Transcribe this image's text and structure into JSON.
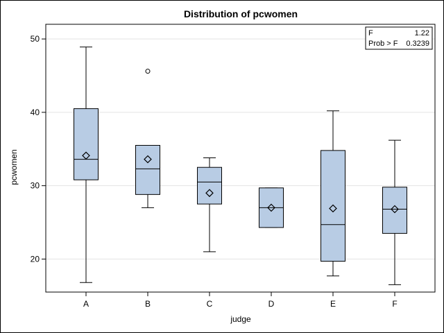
{
  "chart_data": {
    "type": "box",
    "title": "Distribution of pcwomen",
    "xlabel": "judge",
    "ylabel": "pcwomen",
    "ylim": [
      15.5,
      52
    ],
    "yticks": [
      20,
      30,
      40,
      50
    ],
    "grid": true,
    "box_fill": "#b8cce4",
    "categories": [
      "A",
      "B",
      "C",
      "D",
      "E",
      "F"
    ],
    "boxes": [
      {
        "category": "A",
        "whisker_low": 16.8,
        "q1": 30.8,
        "median": 33.6,
        "q3": 40.5,
        "whisker_high": 48.9,
        "mean": 34.1,
        "outliers": []
      },
      {
        "category": "B",
        "whisker_low": 27.0,
        "q1": 28.8,
        "median": 32.3,
        "q3": 35.5,
        "whisker_high": 35.5,
        "mean": 33.6,
        "outliers": [
          45.6
        ]
      },
      {
        "category": "C",
        "whisker_low": 21.0,
        "q1": 27.5,
        "median": 30.5,
        "q3": 32.5,
        "whisker_high": 33.8,
        "mean": 29.0,
        "outliers": []
      },
      {
        "category": "D",
        "whisker_low": 24.3,
        "q1": 24.3,
        "median": 27.0,
        "q3": 29.7,
        "whisker_high": 29.7,
        "mean": 27.0,
        "outliers": []
      },
      {
        "category": "E",
        "whisker_low": 17.7,
        "q1": 19.7,
        "median": 24.7,
        "q3": 34.8,
        "whisker_high": 40.2,
        "mean": 26.9,
        "outliers": []
      },
      {
        "category": "F",
        "whisker_low": 16.5,
        "q1": 23.5,
        "median": 26.8,
        "q3": 29.8,
        "whisker_high": 36.2,
        "mean": 26.8,
        "outliers": []
      }
    ],
    "stats_box": {
      "placement": "top-right",
      "rows": [
        {
          "label": "F",
          "value": "1.22"
        },
        {
          "label": "Prob > F",
          "value": "0.3239"
        }
      ]
    }
  }
}
